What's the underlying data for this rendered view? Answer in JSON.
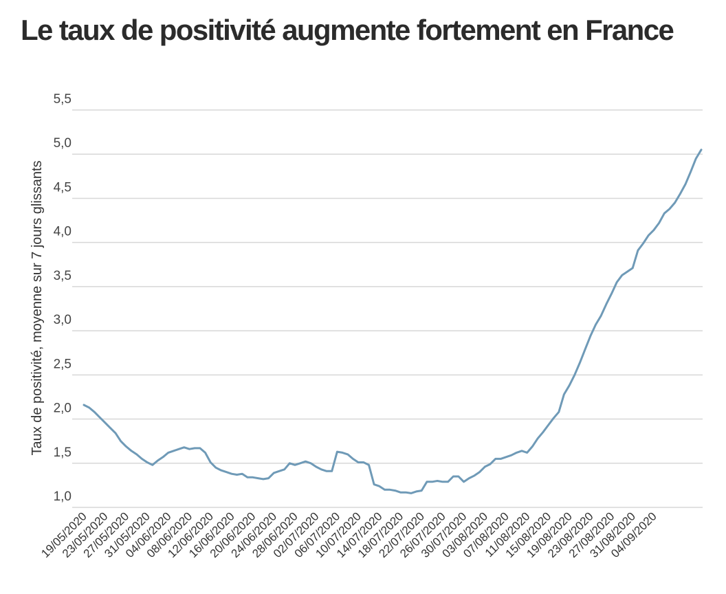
{
  "chart_data": {
    "type": "line",
    "title": "Le taux de positivité augmente fortement en France",
    "ylabel": "Taux de positivité, moyenne sur 7 jours glissants",
    "xlabel": "",
    "ylim": [
      1.0,
      5.5
    ],
    "yticks": [
      "1,0",
      "1,5",
      "2,0",
      "2,5",
      "3,0",
      "3,5",
      "4,0",
      "4,5",
      "5,0",
      "5,5"
    ],
    "grid": true,
    "line_color": "#6f9ab7",
    "start_date": "19/05/2020",
    "x_tick_labels": [
      "19/05/2020",
      "23/05/2020",
      "27/05/2020",
      "31/05/2020",
      "04/06/2020",
      "08/06/2020",
      "12/06/2020",
      "16/06/2020",
      "20/06/2020",
      "24/06/2020",
      "28/06/2020",
      "02/07/2020",
      "06/07/2020",
      "10/07/2020",
      "14/07/2020",
      "18/07/2020",
      "22/07/2020",
      "26/07/2020",
      "30/07/2020",
      "03/08/2020",
      "07/08/2020",
      "11/08/2020",
      "15/08/2020",
      "19/08/2020",
      "23/08/2020",
      "27/08/2020",
      "31/08/2020",
      "04/09/2020"
    ],
    "series": [
      {
        "values": [
          2.16,
          2.13,
          2.08,
          2.02,
          1.96,
          1.9,
          1.84,
          1.75,
          1.69,
          1.64,
          1.6,
          1.55,
          1.51,
          1.48,
          1.53,
          1.57,
          1.62,
          1.64,
          1.66,
          1.68,
          1.66,
          1.67,
          1.67,
          1.62,
          1.51,
          1.45,
          1.42,
          1.4,
          1.38,
          1.37,
          1.38,
          1.34,
          1.34,
          1.33,
          1.32,
          1.33,
          1.39,
          1.41,
          1.43,
          1.5,
          1.48,
          1.5,
          1.52,
          1.5,
          1.46,
          1.43,
          1.41,
          1.41,
          1.63,
          1.62,
          1.6,
          1.55,
          1.51,
          1.51,
          1.48,
          1.26,
          1.24,
          1.2,
          1.2,
          1.19,
          1.17,
          1.17,
          1.16,
          1.18,
          1.19,
          1.29,
          1.29,
          1.3,
          1.29,
          1.29,
          1.35,
          1.35,
          1.29,
          1.33,
          1.36,
          1.4,
          1.46,
          1.49,
          1.55,
          1.55,
          1.57,
          1.59,
          1.62,
          1.64,
          1.62,
          1.69,
          1.78,
          1.85,
          1.93,
          2.01,
          2.08,
          2.28,
          2.38,
          2.5,
          2.64,
          2.79,
          2.94,
          3.07,
          3.17,
          3.3,
          3.42,
          3.55,
          3.63,
          3.67,
          3.71,
          3.91,
          3.99,
          4.08,
          4.14,
          4.22,
          4.33,
          4.38,
          4.45,
          4.55,
          4.66,
          4.8,
          4.95,
          5.05
        ]
      }
    ]
  }
}
